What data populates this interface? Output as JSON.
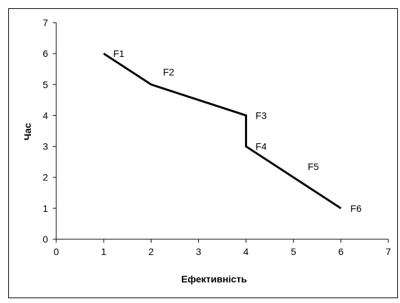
{
  "chart_data": {
    "type": "line",
    "title": "",
    "xlabel": "Ефективність",
    "ylabel": "Час",
    "xlim": [
      0,
      7
    ],
    "ylim": [
      0,
      7
    ],
    "x_ticks": [
      "0",
      "1",
      "2",
      "3",
      "4",
      "5",
      "6",
      "7"
    ],
    "y_ticks": [
      "0",
      "1",
      "2",
      "3",
      "4",
      "5",
      "6",
      "7"
    ],
    "grid": false,
    "legend": "none",
    "series": [
      {
        "color": "#000000",
        "points": [
          {
            "x": 1,
            "y": 6
          },
          {
            "x": 2,
            "y": 5
          },
          {
            "x": 4,
            "y": 4
          },
          {
            "x": 4,
            "y": 3
          },
          {
            "x": 6,
            "y": 1
          }
        ]
      }
    ],
    "annotations": [
      {
        "text": "F1",
        "x": 1.2,
        "y": 6.0
      },
      {
        "text": "F2",
        "x": 2.25,
        "y": 5.4
      },
      {
        "text": "F3",
        "x": 4.2,
        "y": 4.0
      },
      {
        "text": "F4",
        "x": 4.2,
        "y": 3.0
      },
      {
        "text": "F5",
        "x": 5.3,
        "y": 2.35
      },
      {
        "text": "F6",
        "x": 6.2,
        "y": 1.0
      }
    ]
  }
}
